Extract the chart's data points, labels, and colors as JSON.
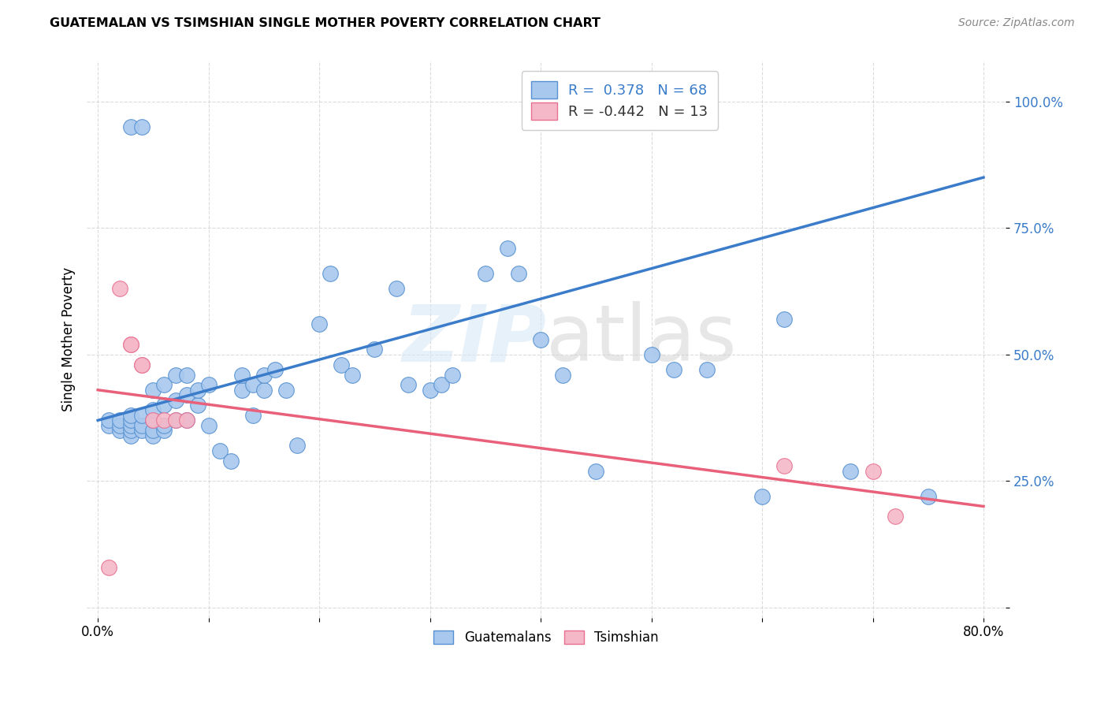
{
  "title": "GUATEMALAN VS TSIMSHIAN SINGLE MOTHER POVERTY CORRELATION CHART",
  "source": "Source: ZipAtlas.com",
  "ylabel": "Single Mother Poverty",
  "yticks": [
    0.0,
    0.25,
    0.5,
    0.75,
    1.0
  ],
  "ytick_labels": [
    "",
    "25.0%",
    "50.0%",
    "75.0%",
    "100.0%"
  ],
  "xticks": [
    0.0,
    0.1,
    0.2,
    0.3,
    0.4,
    0.5,
    0.6,
    0.7,
    0.8
  ],
  "xtick_labels": [
    "0.0%",
    "",
    "",
    "",
    "",
    "",
    "",
    "",
    "80.0%"
  ],
  "xlim": [
    -0.01,
    0.82
  ],
  "ylim": [
    -0.02,
    1.08
  ],
  "watermark": "ZIPatlas",
  "blue_R": 0.378,
  "blue_N": 68,
  "pink_R": -0.442,
  "pink_N": 13,
  "blue_color": "#A8C8EE",
  "pink_color": "#F5B8C8",
  "blue_edge_color": "#5590D0",
  "pink_edge_color": "#E87090",
  "blue_line_color": "#3A7CC9",
  "pink_line_color": "#E8607A",
  "background_color": "#FFFFFF",
  "grid_color": "#CCCCCC",
  "blue_scatter_x": [
    0.01,
    0.01,
    0.02,
    0.02,
    0.02,
    0.03,
    0.03,
    0.03,
    0.03,
    0.03,
    0.03,
    0.04,
    0.04,
    0.04,
    0.04,
    0.05,
    0.05,
    0.05,
    0.05,
    0.05,
    0.06,
    0.06,
    0.06,
    0.06,
    0.07,
    0.07,
    0.07,
    0.08,
    0.08,
    0.08,
    0.09,
    0.09,
    0.1,
    0.1,
    0.11,
    0.12,
    0.13,
    0.13,
    0.14,
    0.14,
    0.15,
    0.15,
    0.16,
    0.17,
    0.18,
    0.2,
    0.21,
    0.22,
    0.23,
    0.25,
    0.27,
    0.28,
    0.3,
    0.31,
    0.32,
    0.35,
    0.37,
    0.38,
    0.4,
    0.42,
    0.45,
    0.5,
    0.52,
    0.55,
    0.6,
    0.62,
    0.68,
    0.75
  ],
  "blue_scatter_y": [
    0.36,
    0.37,
    0.35,
    0.36,
    0.37,
    0.34,
    0.35,
    0.36,
    0.37,
    0.38,
    0.95,
    0.35,
    0.36,
    0.38,
    0.95,
    0.34,
    0.35,
    0.37,
    0.39,
    0.43,
    0.35,
    0.36,
    0.4,
    0.44,
    0.37,
    0.41,
    0.46,
    0.37,
    0.42,
    0.46,
    0.4,
    0.43,
    0.36,
    0.44,
    0.31,
    0.29,
    0.43,
    0.46,
    0.38,
    0.44,
    0.43,
    0.46,
    0.47,
    0.43,
    0.32,
    0.56,
    0.66,
    0.48,
    0.46,
    0.51,
    0.63,
    0.44,
    0.43,
    0.44,
    0.46,
    0.66,
    0.71,
    0.66,
    0.53,
    0.46,
    0.27,
    0.5,
    0.47,
    0.47,
    0.22,
    0.57,
    0.27,
    0.22
  ],
  "pink_scatter_x": [
    0.01,
    0.02,
    0.03,
    0.03,
    0.04,
    0.04,
    0.05,
    0.06,
    0.07,
    0.08,
    0.62,
    0.7,
    0.72
  ],
  "pink_scatter_y": [
    0.08,
    0.63,
    0.52,
    0.52,
    0.48,
    0.48,
    0.37,
    0.37,
    0.37,
    0.37,
    0.28,
    0.27,
    0.18
  ],
  "blue_trendline_x": [
    0.0,
    0.8
  ],
  "blue_trendline_y": [
    0.37,
    0.85
  ],
  "pink_trendline_x": [
    0.0,
    0.8
  ],
  "pink_trendline_y": [
    0.43,
    0.2
  ],
  "legend_labels": [
    "Guatemalans",
    "Tsimshian"
  ]
}
